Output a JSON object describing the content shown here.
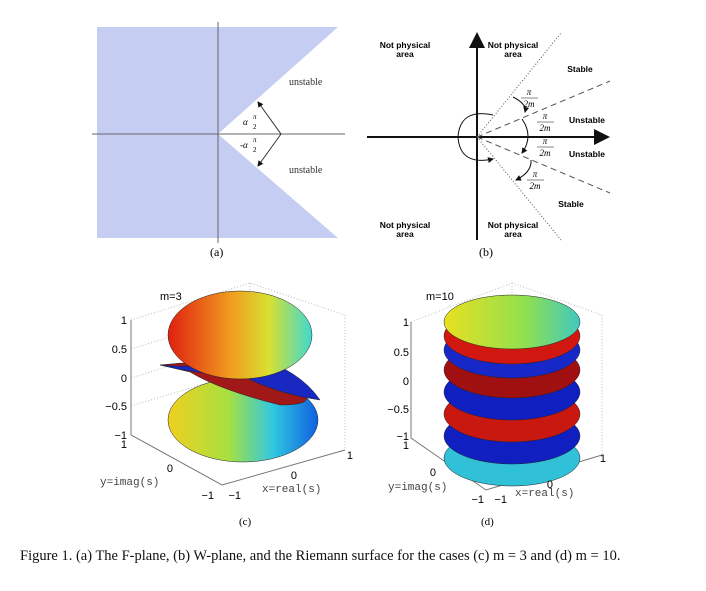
{
  "panels": {
    "a": {
      "caption": "(a)",
      "region_labels": [
        "unstable",
        "unstable"
      ],
      "angle_labels": [
        {
          "symbol": "α",
          "num": "π",
          "den": "2"
        },
        {
          "symbol": "-α",
          "num": "π",
          "den": "2"
        }
      ],
      "fill_color": "#c5cdf3"
    },
    "b": {
      "caption": "(b)",
      "not_physical": [
        "Not physical",
        "area"
      ],
      "stable": "Stable",
      "unstable": "Unstable",
      "angle": {
        "num": "π",
        "den": "2m"
      }
    },
    "c": {
      "caption": "(c)",
      "title": "m=3",
      "z_ticks": [
        "1",
        "0.5",
        "0",
        "−0.5",
        "−1"
      ],
      "y_ticks": [
        "1",
        "0",
        "−1"
      ],
      "x_ticks": [
        "−1",
        "0",
        "1"
      ],
      "ylabel": "y=imag(s)",
      "xlabel": "x=real(s)"
    },
    "d": {
      "caption": "(d)",
      "title": "m=10",
      "z_ticks": [
        "1",
        "0.5",
        "0",
        "−0.5",
        "−1"
      ],
      "y_ticks": [
        "1",
        "0",
        "−1"
      ],
      "x_ticks": [
        "−1",
        "0",
        "1"
      ],
      "ylabel": "y=imag(s)",
      "xlabel": "x=real(s)"
    }
  },
  "caption": "Figure 1. (a) The F-plane, (b) W-plane, and the Riemann surface for the cases (c) m = 3 and (d) m = 10.",
  "colors": {
    "red": "#d81c10",
    "blue": "#1020c8",
    "yellow": "#e8e020",
    "cyan": "#30d0d8"
  }
}
